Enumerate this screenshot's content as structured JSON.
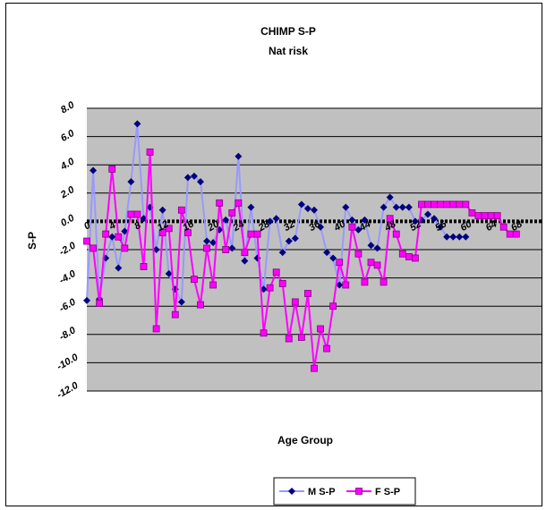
{
  "chart_data": {
    "type": "line",
    "title": "CHIMP S-P",
    "subtitle": "Nat risk",
    "xlabel": "Age Group",
    "ylabel": "S-P",
    "ylim": [
      -12,
      8
    ],
    "yticks": [
      "8.0",
      "6.0",
      "4.0",
      "2.0",
      "0.0",
      "-2.0",
      "-4.0",
      "-6.0",
      "-8.0",
      "-10.0",
      "-12.0"
    ],
    "ytick_values": [
      8,
      6,
      4,
      2,
      0,
      -2,
      -4,
      -6,
      -8,
      -10,
      -12
    ],
    "xticks": [
      "0",
      "4",
      "8",
      "12",
      "16",
      "20",
      "24",
      "28",
      "32",
      "36",
      "40",
      "44",
      "48",
      "52",
      "56",
      "60",
      "64",
      "68"
    ],
    "xtick_values": [
      0,
      4,
      8,
      12,
      16,
      20,
      24,
      28,
      32,
      36,
      40,
      44,
      48,
      52,
      56,
      60,
      64,
      68
    ],
    "x_range": [
      0,
      72
    ],
    "grid": true,
    "legend_position": "bottom",
    "colors": {
      "plot_background": "#c0c0c0",
      "male_line": "#9999ff",
      "male_marker": "#000080",
      "female_line": "#ff00ff",
      "female_marker": "#ff00ff",
      "zero_line": "#000000"
    },
    "series": [
      {
        "name": "M S-P",
        "marker": "diamond",
        "values": [
          -5.6,
          3.6,
          -5.5,
          -2.6,
          -1.1,
          -3.3,
          -0.7,
          2.8,
          6.9,
          0.2,
          1.0,
          -2.0,
          0.8,
          -3.7,
          -4.8,
          -5.7,
          3.1,
          3.2,
          2.8,
          -1.4,
          -1.5,
          -0.6,
          0.1,
          -1.9,
          4.6,
          -2.8,
          1.0,
          -2.6,
          -4.8,
          0.0,
          0.2,
          -2.2,
          -1.4,
          -1.2,
          1.2,
          0.9,
          0.8,
          -0.4,
          -2.2,
          -2.6,
          -4.5,
          1.0,
          0.1,
          -0.6,
          0.1,
          -1.7,
          -1.9,
          1.0,
          1.7,
          1.0,
          1.0,
          1.0,
          0.0,
          0.1,
          0.5,
          0.2,
          -0.4,
          -1.1,
          -1.1,
          -1.1,
          -1.1
        ]
      },
      {
        "name": "F S-P",
        "marker": "square",
        "values": [
          -1.4,
          -1.9,
          -5.8,
          -0.9,
          3.7,
          -1.1,
          -1.9,
          0.5,
          0.5,
          -3.2,
          4.9,
          -7.6,
          -0.8,
          -0.5,
          -6.6,
          0.8,
          -0.8,
          -4.1,
          -5.9,
          -1.9,
          -4.5,
          1.3,
          -2.0,
          0.6,
          1.3,
          -2.2,
          -0.9,
          -0.9,
          -7.9,
          -4.7,
          -3.6,
          -4.4,
          -8.3,
          -5.7,
          -8.2,
          -5.1,
          -10.4,
          -7.6,
          -9.0,
          -6.0,
          -2.9,
          -4.5,
          -0.4,
          -2.3,
          -4.3,
          -2.9,
          -3.1,
          -4.3,
          0.2,
          -0.9,
          -2.3,
          -2.5,
          -2.6,
          1.2,
          1.2,
          1.2,
          1.2,
          1.2,
          1.2,
          1.2,
          1.2,
          0.6,
          0.4,
          0.4,
          0.4,
          0.4,
          -0.4,
          -0.9,
          -0.9
        ]
      }
    ]
  }
}
